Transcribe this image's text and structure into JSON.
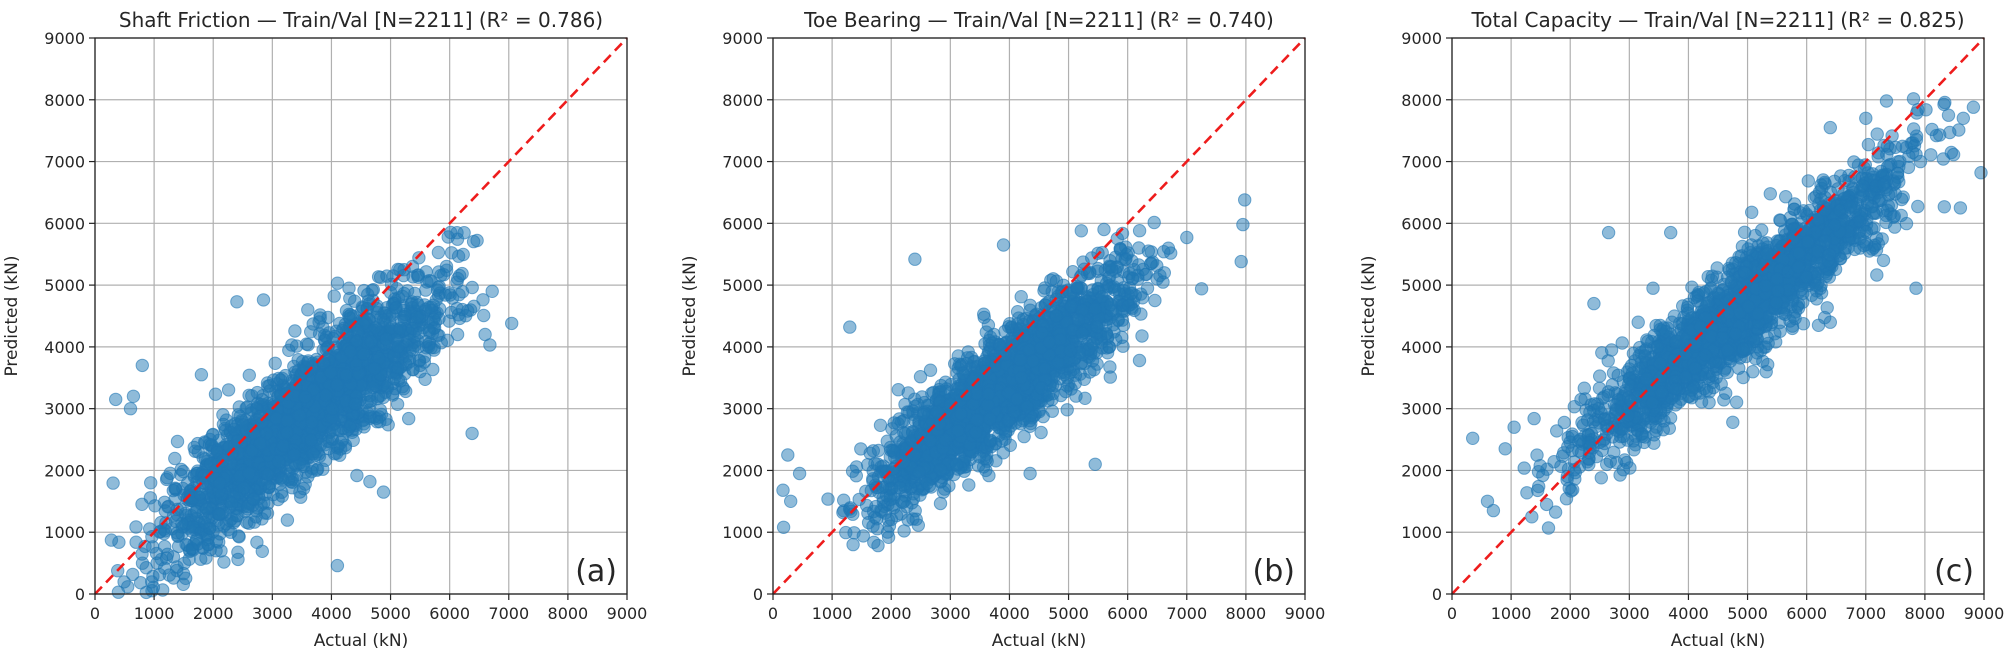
{
  "chart_data": [
    {
      "type": "scatter",
      "panel": "(a)",
      "title": "Shaft Friction — Train/Val [N=2211] (R² = 0.786)",
      "xlabel": "Actual (kN)",
      "ylabel": "Predicted (kN)",
      "xlim": [
        0,
        9000
      ],
      "ylim": [
        0,
        9000
      ],
      "xticks": [
        "0",
        "1000",
        "2000",
        "3000",
        "4000",
        "5000",
        "6000",
        "7000",
        "8000",
        "9000"
      ],
      "yticks": [
        "0",
        "1000",
        "2000",
        "3000",
        "4000",
        "5000",
        "6000",
        "7000",
        "8000",
        "9000"
      ],
      "grid": true,
      "reference_line": "y = x",
      "n_points": 2211,
      "r2": 0.786,
      "cluster": {
        "x_min": 0,
        "x_max": 7050,
        "slope": 0.78,
        "intercept": 150,
        "noise": 500
      },
      "points": [
        [
          7050,
          4380
        ],
        [
          6720,
          4900
        ],
        [
          6680,
          4030
        ],
        [
          6380,
          2600
        ],
        [
          4100,
          460
        ],
        [
          2420,
          560
        ],
        [
          4880,
          1650
        ],
        [
          4650,
          1820
        ],
        [
          2400,
          4730
        ],
        [
          2850,
          4760
        ],
        [
          5000,
          4880
        ],
        [
          6150,
          4520
        ],
        [
          6600,
          4200
        ],
        [
          1800,
          3550
        ],
        [
          800,
          3700
        ],
        [
          650,
          3200
        ],
        [
          350,
          3150
        ],
        [
          5500,
          3600
        ],
        [
          600,
          3000
        ],
        [
          1050,
          500
        ],
        [
          3600,
          4600
        ]
      ]
    },
    {
      "type": "scatter",
      "panel": "(b)",
      "title": "Toe Bearing — Train/Val [N=2211] (R² = 0.740)",
      "xlabel": "Actual (kN)",
      "ylabel": "Predicted (kN)",
      "xlim": [
        0,
        9000
      ],
      "ylim": [
        0,
        9000
      ],
      "xticks": [
        "0",
        "1000",
        "2000",
        "3000",
        "4000",
        "5000",
        "6000",
        "7000",
        "8000",
        "9000"
      ],
      "yticks": [
        "0",
        "1000",
        "2000",
        "3000",
        "4000",
        "5000",
        "6000",
        "7000",
        "8000",
        "9000"
      ],
      "grid": true,
      "reference_line": "y = x",
      "n_points": 2211,
      "r2": 0.74,
      "cluster": {
        "x_min": 700,
        "x_max": 7000,
        "slope": 0.75,
        "intercept": 420,
        "noise": 430
      },
      "points": [
        [
          7980,
          6380
        ],
        [
          7950,
          5980
        ],
        [
          7920,
          5380
        ],
        [
          7250,
          4940
        ],
        [
          7000,
          5770
        ],
        [
          6620,
          5200
        ],
        [
          6200,
          3780
        ],
        [
          5450,
          2100
        ],
        [
          4350,
          1950
        ],
        [
          3600,
          2000
        ],
        [
          2400,
          5420
        ],
        [
          1300,
          4320
        ],
        [
          250,
          2250
        ],
        [
          170,
          1680
        ],
        [
          300,
          1500
        ],
        [
          450,
          1950
        ],
        [
          180,
          1080
        ],
        [
          3900,
          5650
        ],
        [
          5600,
          5900
        ],
        [
          6350,
          5550
        ]
      ]
    },
    {
      "type": "scatter",
      "panel": "(c)",
      "title": "Total Capacity — Train/Val [N=2211] (R² = 0.825)",
      "xlabel": "Actual (kN)",
      "ylabel": "Predicted (kN)",
      "xlim": [
        0,
        9000
      ],
      "ylim": [
        0,
        9000
      ],
      "xticks": [
        "0",
        "1000",
        "2000",
        "3000",
        "4000",
        "5000",
        "6000",
        "7000",
        "8000",
        "9000"
      ],
      "yticks": [
        "0",
        "1000",
        "2000",
        "3000",
        "4000",
        "5000",
        "6000",
        "7000",
        "8000",
        "9000"
      ],
      "grid": true,
      "reference_line": "y = x",
      "n_points": 2211,
      "r2": 0.825,
      "cluster": {
        "x_min": 800,
        "x_max": 8900,
        "slope": 0.8,
        "intercept": 700,
        "noise": 400
      },
      "points": [
        [
          8950,
          6820
        ],
        [
          8820,
          7880
        ],
        [
          8650,
          7700
        ],
        [
          8400,
          7750
        ],
        [
          8120,
          7520
        ],
        [
          7350,
          7980
        ],
        [
          7000,
          7700
        ],
        [
          6400,
          7550
        ],
        [
          7850,
          4950
        ],
        [
          7300,
          5400
        ],
        [
          6400,
          4400
        ],
        [
          6200,
          4350
        ],
        [
          4750,
          2780
        ],
        [
          4350,
          3100
        ],
        [
          4050,
          3300
        ],
        [
          2650,
          5850
        ],
        [
          3700,
          5850
        ],
        [
          3400,
          4950
        ],
        [
          3150,
          4400
        ],
        [
          2700,
          3950
        ],
        [
          2400,
          4700
        ],
        [
          1050,
          2700
        ],
        [
          900,
          2350
        ],
        [
          350,
          2520
        ],
        [
          600,
          1500
        ],
        [
          700,
          1350
        ],
        [
          1350,
          1250
        ],
        [
          1600,
          1450
        ],
        [
          8600,
          6250
        ],
        [
          5500,
          5100
        ]
      ]
    }
  ],
  "panels": [
    {
      "title": "Shaft Friction — Train/Val [N=2211] (R² = 0.786)",
      "label": "(a)",
      "xlabel": "Actual (kN)",
      "ylabel": "Predicted (kN)"
    },
    {
      "title": "Toe Bearing — Train/Val [N=2211] (R² = 0.740)",
      "label": "(b)",
      "xlabel": "Actual (kN)",
      "ylabel": "Predicted (kN)"
    },
    {
      "title": "Total Capacity — Train/Val [N=2211] (R² = 0.825)",
      "label": "(c)",
      "xlabel": "Actual (kN)",
      "ylabel": "Predicted (kN)"
    }
  ],
  "colors": {
    "points": "#1f77b4",
    "reference_line": "#ee1c1c",
    "grid": "#b0b0b0"
  }
}
